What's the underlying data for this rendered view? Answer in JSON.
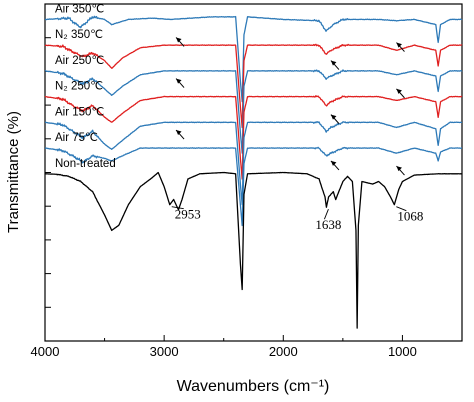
{
  "chart_data": {
    "type": "line",
    "title": "",
    "xlabel": "Wavenumbers (cm⁻¹)",
    "ylabel": "Transmittance (%)",
    "xlim": [
      4000,
      500
    ],
    "x_reversed": true,
    "x_ticks": [
      "4000",
      "3000",
      "2000",
      "1000"
    ],
    "x_tick_values": [
      4000,
      3000,
      2000,
      1000
    ],
    "y_ticks_labeled": false,
    "grid": false,
    "colors": {
      "blue": "#2e7ab8",
      "red": "#e02020",
      "black": "#000000"
    },
    "series": [
      {
        "name": "Air 350℃",
        "color": "#2e7ab8",
        "offset": 9.0,
        "points": [
          [
            4000,
            0
          ],
          [
            3800,
            0.05
          ],
          [
            3750,
            -0.15
          ],
          [
            3700,
            -0.3
          ],
          [
            3650,
            -0.1
          ],
          [
            3600,
            0.1
          ],
          [
            3500,
            0
          ],
          [
            3440,
            -0.2
          ],
          [
            3300,
            0
          ],
          [
            3100,
            0.05
          ],
          [
            2950,
            0
          ],
          [
            2600,
            0.1
          ],
          [
            2400,
            0.1
          ],
          [
            2360,
            -2.4
          ],
          [
            2345,
            -3.2
          ],
          [
            2330,
            -0.6
          ],
          [
            2300,
            0.1
          ],
          [
            2000,
            0
          ],
          [
            1700,
            -0.05
          ],
          [
            1640,
            -0.45
          ],
          [
            1580,
            -0.2
          ],
          [
            1500,
            0
          ],
          [
            1200,
            0
          ],
          [
            1050,
            -0.05
          ],
          [
            900,
            0
          ],
          [
            720,
            -0.2
          ],
          [
            700,
            -0.9
          ],
          [
            680,
            -0.2
          ],
          [
            600,
            0
          ],
          [
            500,
            0
          ]
        ]
      },
      {
        "name": "N₂ 350℃",
        "color": "#e02020",
        "offset": 8.0,
        "points": [
          [
            4000,
            0
          ],
          [
            3850,
            -0.05
          ],
          [
            3750,
            -0.3
          ],
          [
            3680,
            -0.45
          ],
          [
            3600,
            -0.3
          ],
          [
            3500,
            -0.6
          ],
          [
            3440,
            -0.9
          ],
          [
            3350,
            -0.5
          ],
          [
            3200,
            -0.1
          ],
          [
            3000,
            0
          ],
          [
            2600,
            0
          ],
          [
            2400,
            0
          ],
          [
            2360,
            -2.4
          ],
          [
            2345,
            -3.2
          ],
          [
            2330,
            -0.6
          ],
          [
            2300,
            0
          ],
          [
            2000,
            0
          ],
          [
            1700,
            0
          ],
          [
            1640,
            -0.35
          ],
          [
            1600,
            -0.2
          ],
          [
            1500,
            0
          ],
          [
            1200,
            0
          ],
          [
            1050,
            -0.2
          ],
          [
            900,
            0
          ],
          [
            720,
            -0.2
          ],
          [
            700,
            -0.8
          ],
          [
            680,
            -0.2
          ],
          [
            600,
            0
          ],
          [
            500,
            0
          ]
        ]
      },
      {
        "name": "Air 250℃",
        "color": "#2e7ab8",
        "offset": 7.0,
        "points": [
          [
            4000,
            0
          ],
          [
            3850,
            -0.1
          ],
          [
            3750,
            -0.35
          ],
          [
            3680,
            -0.5
          ],
          [
            3600,
            -0.3
          ],
          [
            3500,
            -0.7
          ],
          [
            3440,
            -0.95
          ],
          [
            3350,
            -0.6
          ],
          [
            3200,
            -0.15
          ],
          [
            3000,
            0
          ],
          [
            2600,
            0
          ],
          [
            2400,
            0
          ],
          [
            2360,
            -2.4
          ],
          [
            2345,
            -3.2
          ],
          [
            2330,
            -0.6
          ],
          [
            2300,
            0
          ],
          [
            2000,
            0
          ],
          [
            1700,
            0
          ],
          [
            1640,
            -0.3
          ],
          [
            1600,
            -0.2
          ],
          [
            1500,
            0
          ],
          [
            1200,
            0
          ],
          [
            1050,
            -0.15
          ],
          [
            900,
            0
          ],
          [
            720,
            -0.2
          ],
          [
            700,
            -0.8
          ],
          [
            680,
            -0.2
          ],
          [
            600,
            0
          ],
          [
            500,
            0
          ]
        ]
      },
      {
        "name": "N₂ 250℃",
        "color": "#e02020",
        "offset": 6.0,
        "points": [
          [
            4000,
            0
          ],
          [
            3850,
            -0.1
          ],
          [
            3750,
            -0.4
          ],
          [
            3680,
            -0.55
          ],
          [
            3600,
            -0.35
          ],
          [
            3500,
            -0.8
          ],
          [
            3440,
            -1.0
          ],
          [
            3350,
            -0.65
          ],
          [
            3200,
            -0.15
          ],
          [
            3000,
            0
          ],
          [
            2600,
            0
          ],
          [
            2400,
            0
          ],
          [
            2360,
            -2.4
          ],
          [
            2345,
            -3.2
          ],
          [
            2330,
            -0.6
          ],
          [
            2300,
            0
          ],
          [
            2000,
            0
          ],
          [
            1700,
            0
          ],
          [
            1640,
            -0.35
          ],
          [
            1600,
            -0.2
          ],
          [
            1500,
            0
          ],
          [
            1200,
            0
          ],
          [
            1050,
            -0.15
          ],
          [
            900,
            0
          ],
          [
            720,
            -0.2
          ],
          [
            700,
            -0.8
          ],
          [
            680,
            -0.2
          ],
          [
            600,
            0
          ],
          [
            500,
            0
          ]
        ]
      },
      {
        "name": "Air 150℃",
        "color": "#2e7ab8",
        "offset": 5.0,
        "points": [
          [
            4000,
            0
          ],
          [
            3850,
            -0.1
          ],
          [
            3750,
            -0.4
          ],
          [
            3680,
            -0.6
          ],
          [
            3600,
            -0.35
          ],
          [
            3500,
            -0.85
          ],
          [
            3440,
            -1.05
          ],
          [
            3350,
            -0.7
          ],
          [
            3200,
            -0.15
          ],
          [
            3000,
            0
          ],
          [
            2600,
            0
          ],
          [
            2400,
            0
          ],
          [
            2360,
            -2.4
          ],
          [
            2345,
            -3.2
          ],
          [
            2330,
            -0.6
          ],
          [
            2300,
            0
          ],
          [
            2000,
            0
          ],
          [
            1700,
            0
          ],
          [
            1640,
            -0.35
          ],
          [
            1600,
            -0.2
          ],
          [
            1500,
            0
          ],
          [
            1200,
            0
          ],
          [
            1050,
            -0.2
          ],
          [
            900,
            0
          ],
          [
            720,
            -0.25
          ],
          [
            700,
            -0.9
          ],
          [
            680,
            -0.25
          ],
          [
            600,
            0
          ],
          [
            500,
            0
          ]
        ]
      },
      {
        "name": "Air 75℃",
        "color": "#2e7ab8",
        "offset": 4.0,
        "points": [
          [
            4000,
            0
          ],
          [
            3850,
            -0.1
          ],
          [
            3750,
            -0.35
          ],
          [
            3680,
            -0.55
          ],
          [
            3600,
            -0.3
          ],
          [
            3500,
            -0.4
          ],
          [
            3440,
            -0.5
          ],
          [
            3350,
            -0.3
          ],
          [
            3200,
            0
          ],
          [
            3000,
            0
          ],
          [
            2600,
            0
          ],
          [
            2400,
            0
          ],
          [
            2360,
            -2.2
          ],
          [
            2345,
            -3.0
          ],
          [
            2330,
            -0.6
          ],
          [
            2300,
            0
          ],
          [
            2000,
            0
          ],
          [
            1700,
            0
          ],
          [
            1640,
            -0.3
          ],
          [
            1600,
            -0.2
          ],
          [
            1500,
            0
          ],
          [
            1200,
            0
          ],
          [
            1050,
            -0.2
          ],
          [
            900,
            0
          ],
          [
            720,
            -0.2
          ],
          [
            700,
            -0.5
          ],
          [
            680,
            -0.15
          ],
          [
            600,
            0
          ],
          [
            500,
            0
          ]
        ]
      },
      {
        "name": "Non-treated",
        "color": "#000000",
        "offset": 3.0,
        "points": [
          [
            4000,
            0
          ],
          [
            3900,
            -0.02
          ],
          [
            3800,
            -0.1
          ],
          [
            3700,
            -0.3
          ],
          [
            3600,
            -0.7
          ],
          [
            3500,
            -1.6
          ],
          [
            3440,
            -2.2
          ],
          [
            3380,
            -2.0
          ],
          [
            3300,
            -1.2
          ],
          [
            3200,
            -0.5
          ],
          [
            3100,
            -0.15
          ],
          [
            3050,
            0.05
          ],
          [
            3000,
            -0.5
          ],
          [
            2953,
            -1.2
          ],
          [
            2920,
            -1.0
          ],
          [
            2880,
            -1.4
          ],
          [
            2850,
            -1.0
          ],
          [
            2800,
            -0.2
          ],
          [
            2700,
            0
          ],
          [
            2500,
            0.05
          ],
          [
            2400,
            0
          ],
          [
            2360,
            -3.5
          ],
          [
            2345,
            -4.5
          ],
          [
            2330,
            -0.8
          ],
          [
            2300,
            0
          ],
          [
            2000,
            0.05
          ],
          [
            1800,
            0
          ],
          [
            1700,
            -0.2
          ],
          [
            1650,
            -0.9
          ],
          [
            1638,
            -1.3
          ],
          [
            1620,
            -0.9
          ],
          [
            1580,
            -0.7
          ],
          [
            1560,
            -1.0
          ],
          [
            1500,
            -0.3
          ],
          [
            1460,
            -0.1
          ],
          [
            1420,
            -0.3
          ],
          [
            1390,
            -2.2
          ],
          [
            1380,
            -6.0
          ],
          [
            1370,
            -2.0
          ],
          [
            1340,
            -0.3
          ],
          [
            1250,
            -0.4
          ],
          [
            1200,
            -0.3
          ],
          [
            1150,
            -0.5
          ],
          [
            1100,
            -0.9
          ],
          [
            1068,
            -1.2
          ],
          [
            1030,
            -0.6
          ],
          [
            1000,
            -0.3
          ],
          [
            900,
            -0.05
          ],
          [
            700,
            0
          ],
          [
            500,
            0
          ]
        ]
      }
    ],
    "annotations": [
      {
        "text": "2953",
        "x": 2953,
        "y": 1.8
      },
      {
        "text": "1638",
        "x": 1638,
        "y": 1.7
      },
      {
        "text": "1068",
        "x": 1068,
        "y": 1.8
      }
    ],
    "arrows": [
      {
        "x": 2900,
        "y": 8.3
      },
      {
        "x": 2900,
        "y": 6.7
      },
      {
        "x": 2900,
        "y": 4.7
      },
      {
        "x": 1600,
        "y": 7.4
      },
      {
        "x": 1600,
        "y": 5.3
      },
      {
        "x": 1600,
        "y": 3.5
      },
      {
        "x": 1050,
        "y": 8.1
      },
      {
        "x": 1050,
        "y": 6.3
      },
      {
        "x": 1050,
        "y": 3.3
      }
    ],
    "ylim": [
      -3.5,
      9.6
    ]
  }
}
